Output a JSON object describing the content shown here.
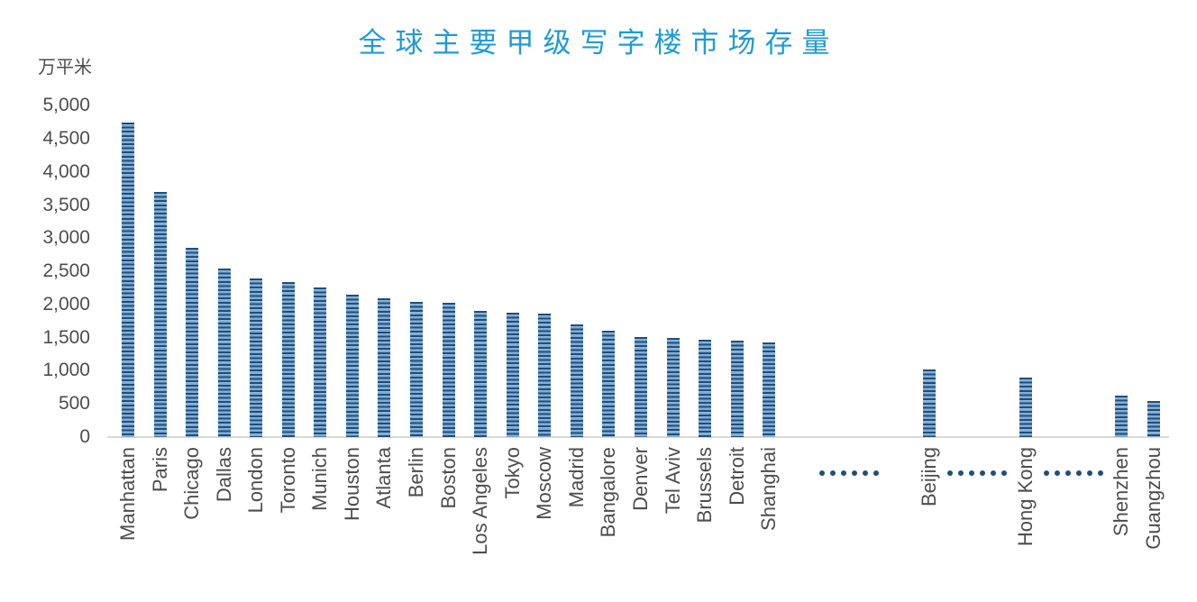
{
  "title": {
    "text": "全球主要甲级写字楼市场存量",
    "color": "#1e9bd7"
  },
  "y_axis": {
    "unit_label": "万平米",
    "tick_labels": [
      "5,000",
      "4,500",
      "4,000",
      "3,500",
      "3,000",
      "2,500",
      "2,000",
      "1,500",
      "1,000",
      "500",
      "0"
    ]
  },
  "chart_data": {
    "type": "bar",
    "title": "全球主要甲级写字楼市场存量",
    "xlabel": "",
    "ylabel": "万平米",
    "ylim": [
      0,
      5000
    ],
    "y_tick_step": 500,
    "grid": false,
    "legend": false,
    "bar_fill_pattern": "horizontal-stripes",
    "categories": [
      "Manhattan",
      "Paris",
      "Chicago",
      "Dallas",
      "London",
      "Toronto",
      "Munich",
      "Houston",
      "Atlanta",
      "Berlin",
      "Boston",
      "Los Angeles",
      "Tokyo",
      "Moscow",
      "Madrid",
      "Bangalore",
      "Denver",
      "Tel Aviv",
      "Brussels",
      "Detroit",
      "Shanghai",
      "Beijing",
      "Hong Kong",
      "Shenzhen",
      "Guangzhou"
    ],
    "values": [
      4750,
      3700,
      2850,
      2550,
      2400,
      2340,
      2260,
      2150,
      2100,
      2040,
      2030,
      1900,
      1880,
      1860,
      1700,
      1600,
      1510,
      1490,
      1475,
      1460,
      1430,
      1020,
      900,
      620,
      550
    ],
    "slot_index": [
      0,
      1,
      2,
      3,
      4,
      5,
      6,
      7,
      8,
      9,
      10,
      11,
      12,
      13,
      14,
      15,
      16,
      17,
      18,
      19,
      20,
      25,
      28,
      31,
      32
    ],
    "total_slots": 33,
    "gap_markers": {
      "text": "......",
      "dots_per_group": 6,
      "slot_centers": [
        22.5,
        26.5,
        29.5
      ]
    },
    "colors": {
      "bar_stripe_dark": "#1f4e79",
      "bar_stripe_light": "#7ea9d3",
      "bar_stripe_lighter": "#97bde0",
      "gap_dot": "#1f4e79",
      "axis_line": "#d9d9d9",
      "tick_text": "#4d4d4d",
      "title_text": "#1e9bd7"
    }
  }
}
